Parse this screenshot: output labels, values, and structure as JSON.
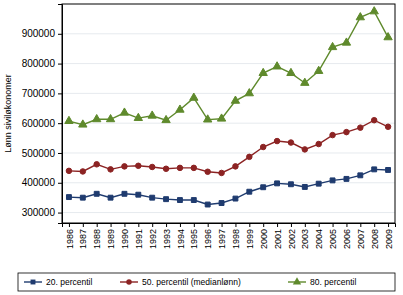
{
  "chart_data": {
    "type": "line",
    "y_label": "Lønn siviløkonomer",
    "x": [
      1986,
      1987,
      1988,
      1989,
      1990,
      1991,
      1992,
      1993,
      1994,
      1995,
      1996,
      1997,
      1998,
      1999,
      2000,
      2001,
      2002,
      2003,
      2004,
      2005,
      2006,
      2007,
      2008,
      2009
    ],
    "xlim": [
      1985.5,
      2009.5
    ],
    "xticks": [
      1986,
      1987,
      1988,
      1989,
      1990,
      1991,
      1992,
      1993,
      1994,
      1995,
      1996,
      1997,
      1998,
      1999,
      2000,
      2001,
      2002,
      2003,
      2004,
      2005,
      2006,
      2007,
      2008,
      2009
    ],
    "ylim": [
      265000,
      1000000
    ],
    "yticks": [
      300000,
      400000,
      500000,
      600000,
      700000,
      800000,
      900000
    ],
    "grid": true,
    "legend": "bottom",
    "series": [
      {
        "name": "20. percentil",
        "color": "#1f3b6f",
        "marker": "square",
        "values": [
          352000,
          350000,
          363000,
          350000,
          363000,
          360000,
          350000,
          345000,
          342000,
          342000,
          327000,
          332000,
          347000,
          370000,
          385000,
          398000,
          395000,
          386000,
          397000,
          408000,
          413000,
          425000,
          445000,
          443000
        ]
      },
      {
        "name": "50. percentil (medianlønn)",
        "color": "#8c2323",
        "marker": "circle",
        "values": [
          440000,
          438000,
          462000,
          445000,
          455000,
          457000,
          453000,
          447000,
          450000,
          450000,
          437000,
          433000,
          455000,
          487000,
          520000,
          540000,
          535000,
          512000,
          530000,
          560000,
          570000,
          585000,
          610000,
          588000
        ]
      },
      {
        "name": "80. percentil",
        "color": "#5f8a2c",
        "marker": "triangle",
        "values": [
          607000,
          595000,
          613000,
          613000,
          635000,
          617000,
          625000,
          610000,
          645000,
          685000,
          612000,
          615000,
          675000,
          700000,
          768000,
          790000,
          768000,
          735000,
          775000,
          855000,
          870000,
          955000,
          975000,
          888000
        ]
      }
    ]
  }
}
